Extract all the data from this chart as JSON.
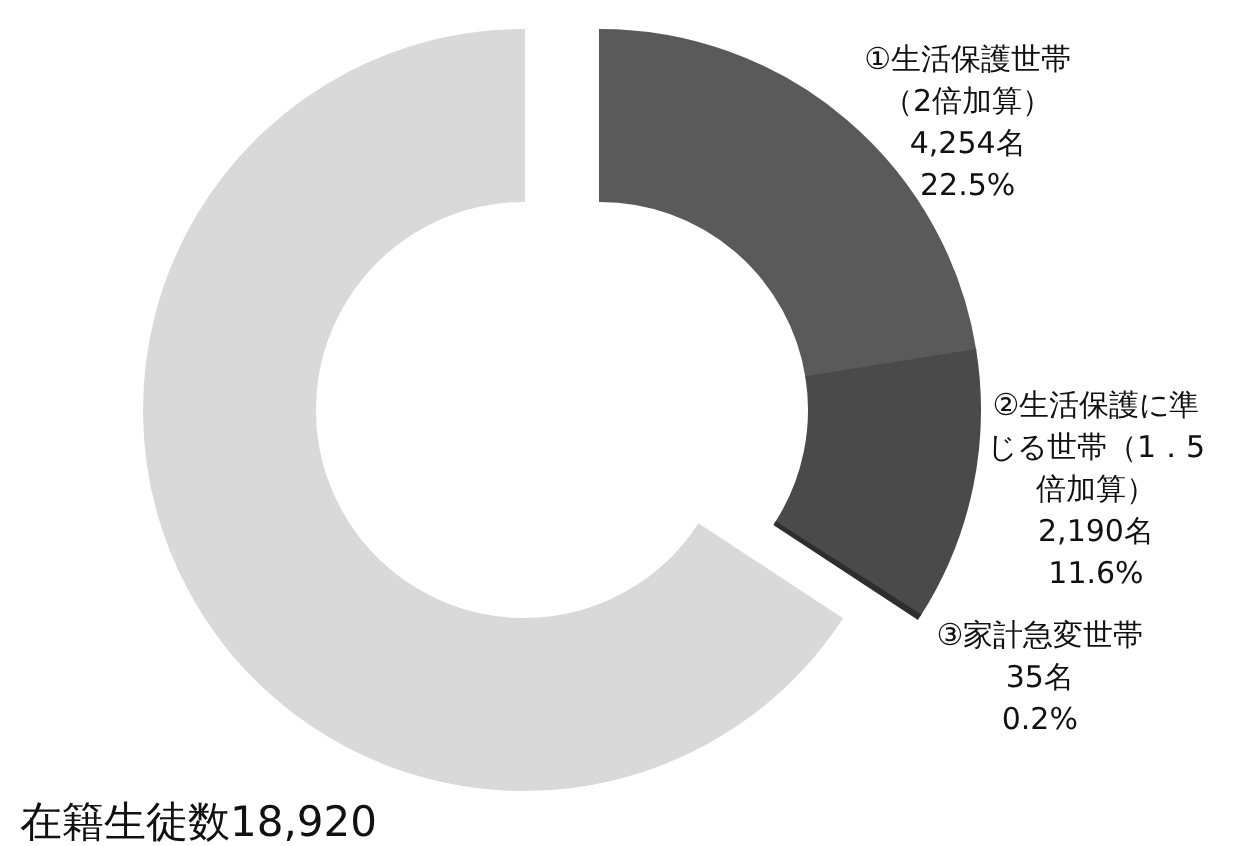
{
  "chart_data": {
    "type": "donut",
    "categories": [
      "①生活保護世帯（2倍加算）",
      "②生活保護に準じる世帯（1．5倍加算）",
      "③家計急変世帯",
      null
    ],
    "values": [
      4254,
      2190,
      35,
      12441
    ],
    "value_labels": [
      "4,254名\n22.5%",
      "2,190名\n11.6%",
      "35名\n0.2%",
      null
    ],
    "colors": [
      "#5a5a5a",
      "#4a4a4a",
      "#2e2e2e",
      "#d9d9d9"
    ],
    "annotations": [
      "在籍生徒数18,920"
    ]
  }
}
